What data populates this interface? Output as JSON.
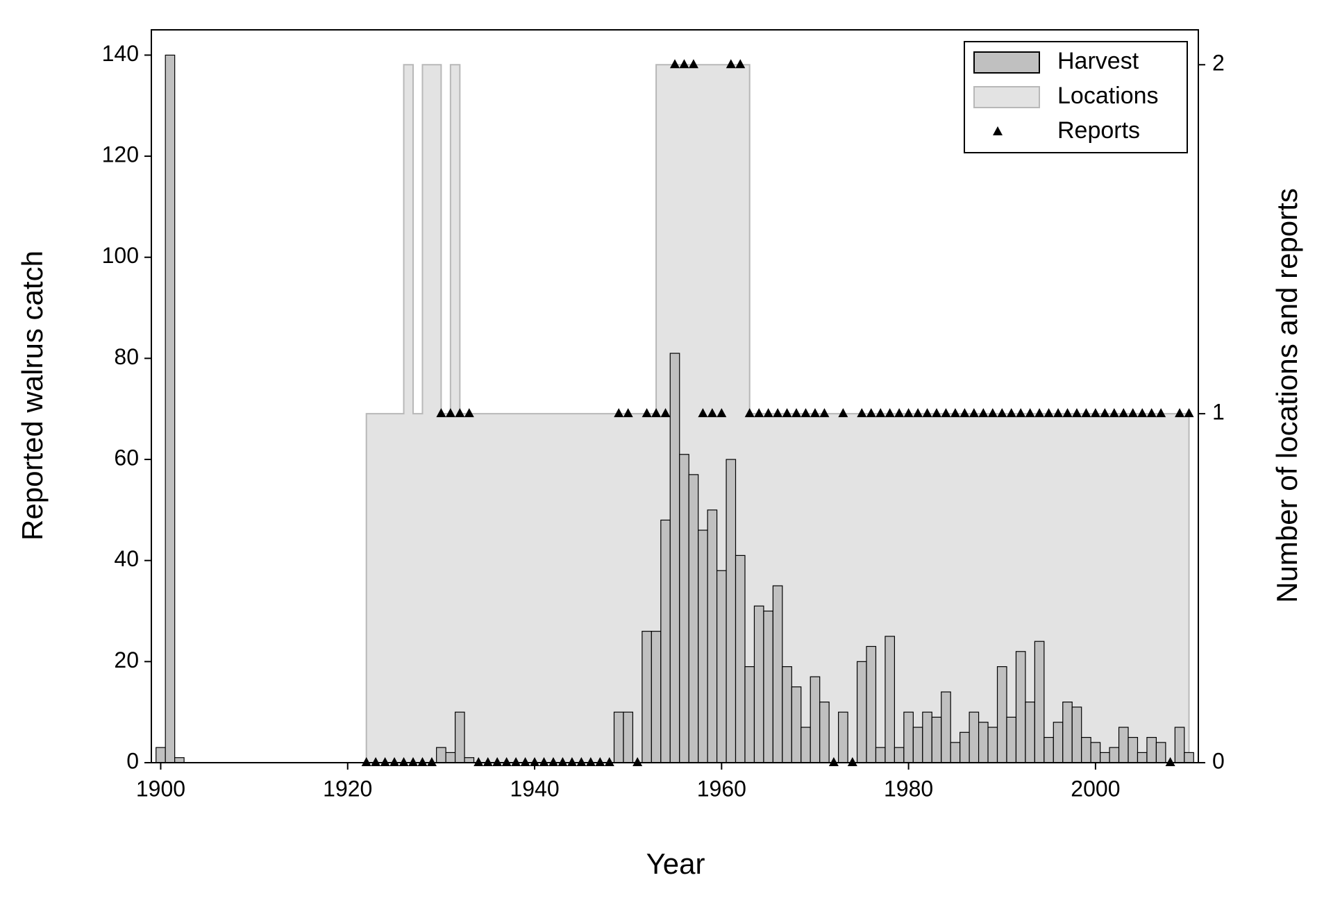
{
  "chart_data": {
    "type": "bar",
    "x_label": "Year",
    "y_label": "Reported walrus catch",
    "y2_label": "Number of locations and reports",
    "x": [
      1900,
      1901,
      1902,
      1903,
      1904,
      1905,
      1906,
      1907,
      1908,
      1909,
      1910,
      1911,
      1912,
      1913,
      1914,
      1915,
      1916,
      1917,
      1918,
      1919,
      1920,
      1921,
      1922,
      1923,
      1924,
      1925,
      1926,
      1927,
      1928,
      1929,
      1930,
      1931,
      1932,
      1933,
      1934,
      1935,
      1936,
      1937,
      1938,
      1939,
      1940,
      1941,
      1942,
      1943,
      1944,
      1945,
      1946,
      1947,
      1948,
      1949,
      1950,
      1951,
      1952,
      1953,
      1954,
      1955,
      1956,
      1957,
      1958,
      1959,
      1960,
      1961,
      1962,
      1963,
      1964,
      1965,
      1966,
      1967,
      1968,
      1969,
      1970,
      1971,
      1972,
      1973,
      1974,
      1975,
      1976,
      1977,
      1978,
      1979,
      1980,
      1981,
      1982,
      1983,
      1984,
      1985,
      1986,
      1987,
      1988,
      1989,
      1990,
      1991,
      1992,
      1993,
      1994,
      1995,
      1996,
      1997,
      1998,
      1999,
      2000,
      2001,
      2002,
      2003,
      2004,
      2005,
      2006,
      2007,
      2008,
      2009,
      2010
    ],
    "series": [
      {
        "name": "Harvest",
        "type": "bar",
        "color": "#c0c0c0",
        "values": [
          3,
          140,
          1,
          null,
          null,
          null,
          null,
          null,
          null,
          null,
          null,
          null,
          null,
          null,
          null,
          null,
          null,
          null,
          null,
          null,
          null,
          null,
          0,
          0,
          0,
          0,
          0,
          0,
          0,
          0,
          3,
          2,
          10,
          1,
          0,
          0,
          0,
          0,
          0,
          0,
          0,
          0,
          0,
          0,
          0,
          0,
          0,
          0,
          0,
          10,
          10,
          0,
          26,
          26,
          48,
          81,
          61,
          57,
          46,
          50,
          38,
          60,
          41,
          19,
          31,
          30,
          35,
          19,
          15,
          7,
          17,
          12,
          0,
          10,
          0,
          20,
          23,
          3,
          25,
          3,
          10,
          7,
          10,
          9,
          14,
          4,
          6,
          10,
          8,
          7,
          19,
          9,
          22,
          12,
          24,
          5,
          8,
          12,
          11,
          5,
          4,
          2,
          3,
          7,
          5,
          2,
          5,
          4,
          0,
          7,
          2
        ]
      },
      {
        "name": "Locations",
        "type": "step-area",
        "axis": "y2",
        "color": "#e3e3e3",
        "values": [
          null,
          null,
          null,
          null,
          null,
          null,
          null,
          null,
          null,
          null,
          null,
          null,
          null,
          null,
          null,
          null,
          null,
          null,
          null,
          null,
          null,
          null,
          1,
          1,
          1,
          1,
          2,
          1,
          2,
          2,
          1,
          2,
          1,
          1,
          1,
          1,
          1,
          1,
          1,
          1,
          1,
          1,
          1,
          1,
          1,
          1,
          1,
          1,
          1,
          1,
          1,
          1,
          1,
          2,
          2,
          2,
          2,
          2,
          2,
          2,
          2,
          2,
          2,
          1,
          1,
          1,
          1,
          1,
          1,
          1,
          1,
          1,
          1,
          1,
          1,
          1,
          1,
          1,
          1,
          1,
          1,
          1,
          1,
          1,
          1,
          1,
          1,
          1,
          1,
          1,
          1,
          1,
          1,
          1,
          1,
          1,
          1,
          1,
          1,
          1,
          1,
          1,
          1,
          1,
          1,
          1,
          1,
          1,
          1,
          1,
          1
        ]
      },
      {
        "name": "Reports",
        "type": "scatter",
        "axis": "y2",
        "color": "#000000",
        "values": [
          null,
          null,
          null,
          null,
          null,
          null,
          null,
          null,
          null,
          null,
          null,
          null,
          null,
          null,
          null,
          null,
          null,
          null,
          null,
          null,
          null,
          null,
          0,
          0,
          0,
          0,
          0,
          0,
          0,
          0,
          1,
          1,
          1,
          1,
          0,
          0,
          0,
          0,
          0,
          0,
          0,
          0,
          0,
          0,
          0,
          0,
          0,
          0,
          0,
          1,
          1,
          0,
          1,
          1,
          1,
          2,
          2,
          2,
          1,
          1,
          1,
          2,
          2,
          1,
          1,
          1,
          1,
          1,
          1,
          1,
          1,
          1,
          0,
          1,
          0,
          1,
          1,
          1,
          1,
          1,
          1,
          1,
          1,
          1,
          1,
          1,
          1,
          1,
          1,
          1,
          1,
          1,
          1,
          1,
          1,
          1,
          1,
          1,
          1,
          1,
          1,
          1,
          1,
          1,
          1,
          1,
          1,
          1,
          0,
          1,
          1
        ]
      }
    ],
    "xlim": [
      1899,
      2011
    ],
    "xticks": [
      1900,
      1920,
      1940,
      1960,
      1980,
      2000
    ],
    "ylim": [
      0,
      145
    ],
    "yticks": [
      0,
      20,
      40,
      60,
      80,
      100,
      120,
      140
    ],
    "y2lim": [
      0,
      2.1
    ],
    "y2ticks": [
      0,
      1,
      2
    ],
    "legend": "top-right"
  }
}
